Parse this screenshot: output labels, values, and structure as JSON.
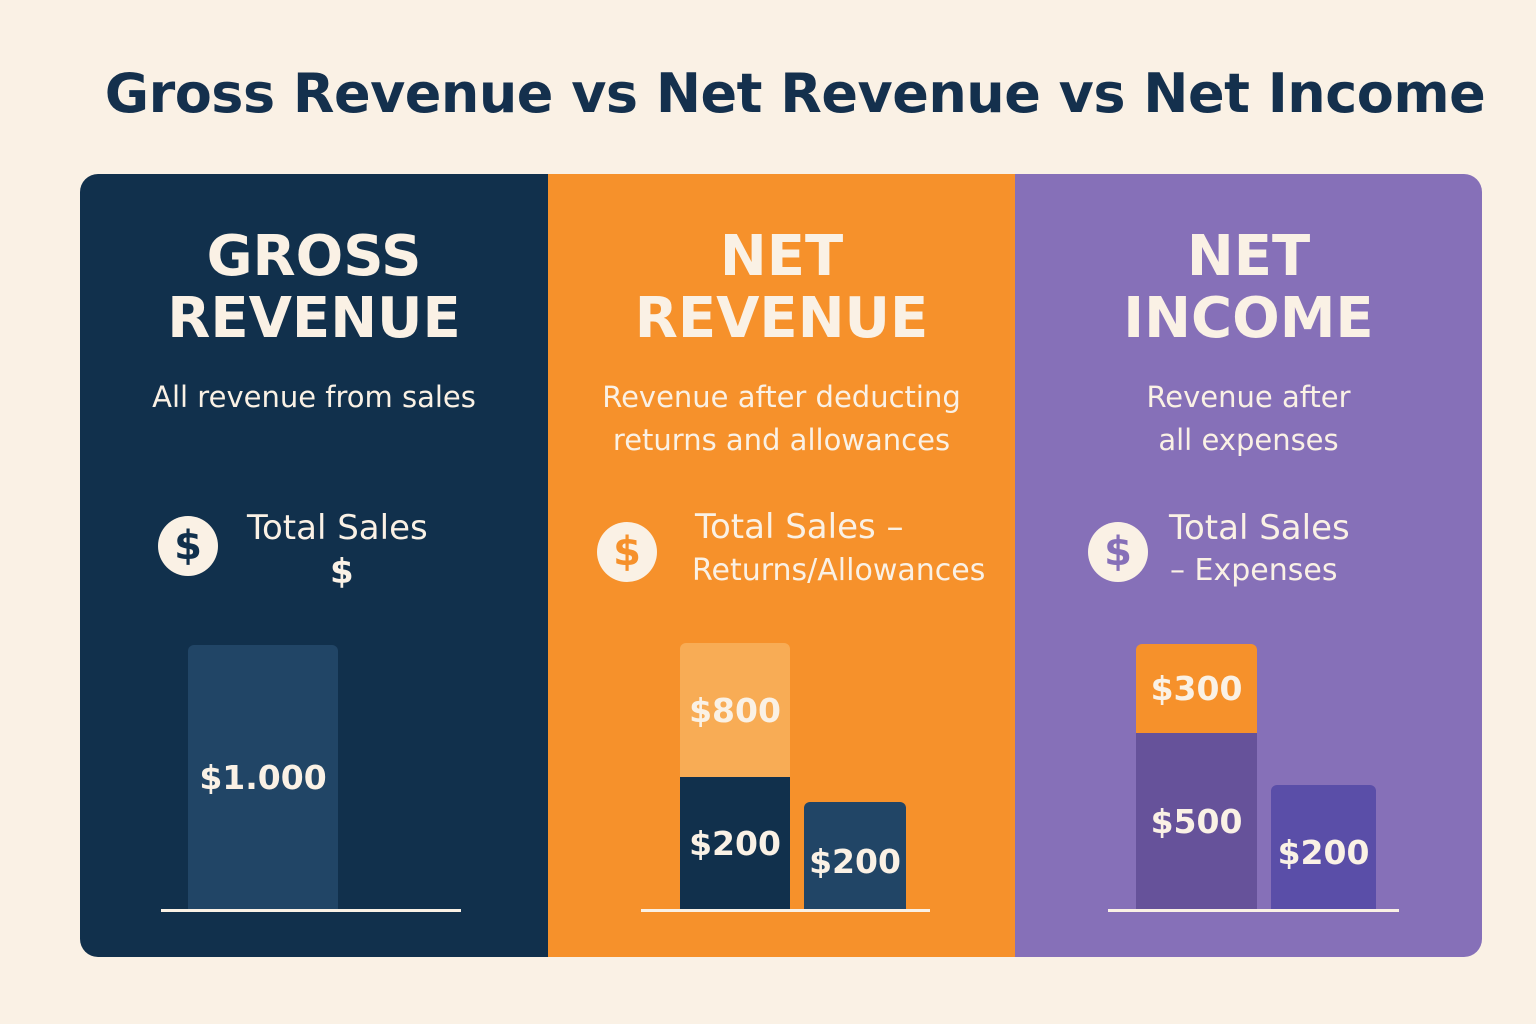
{
  "title": "Gross Revenue vs Net Revenue vs Net Income",
  "colors": {
    "navy": "#11304c",
    "orange": "#f6912b",
    "purple": "#8670b8",
    "cream": "#faf1e5"
  },
  "panels": [
    {
      "heading": [
        "GROSS",
        "REVENUE"
      ],
      "description": [
        "All revenue from sales"
      ],
      "icon": "dollar-coin-icon",
      "formula": [
        "Total Sales",
        "$"
      ],
      "bars": [
        {
          "label": "$1.000"
        }
      ]
    },
    {
      "heading": [
        "NET",
        "REVENUE"
      ],
      "description": [
        "Revenue after deducting",
        "returns and allowances"
      ],
      "icon": "dollar-coin-icon",
      "formula": [
        "Total Sales –",
        "Returns/Allowances"
      ],
      "bars": [
        {
          "label": "$800"
        },
        {
          "label": "$200"
        },
        {
          "label": "$200"
        }
      ]
    },
    {
      "heading": [
        "NET",
        "INCOME"
      ],
      "description": [
        "Revenue after",
        "all expenses"
      ],
      "icon": "dollar-coin-icon",
      "formula": [
        "Total Sales",
        "– Expenses"
      ],
      "bars": [
        {
          "label": "$300"
        },
        {
          "label": "$500"
        },
        {
          "label": "$200"
        }
      ]
    }
  ],
  "coin_symbol": "$"
}
